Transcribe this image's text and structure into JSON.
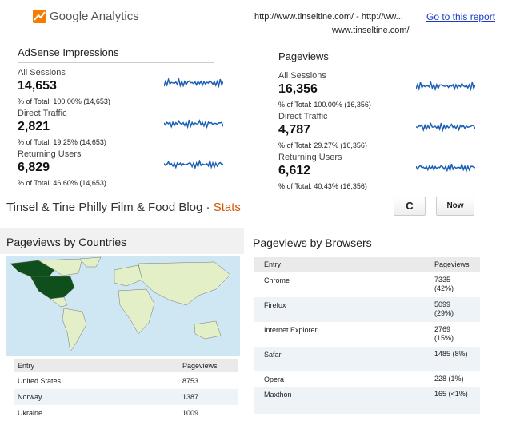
{
  "header": {
    "logo_text": "Google Analytics",
    "url_line_1": "http://www.tinseltine.com/ - http://ww...",
    "url_line_2": "www.tinseltine.com/",
    "link": "Go to this report"
  },
  "panels": [
    {
      "title": "AdSense Impressions",
      "rows": [
        {
          "label": "All Sessions",
          "value": "14,653",
          "percent": "% of Total: 100.00% (14,653)"
        },
        {
          "label": "Direct Traffic",
          "value": "2,821",
          "percent": "% of Total: 19.25% (14,653)"
        },
        {
          "label": "Returning Users",
          "value": "6,829",
          "percent": "% of Total: 46.60% (14,653)"
        }
      ]
    },
    {
      "title": "Pageviews",
      "rows": [
        {
          "label": "All Sessions",
          "value": "16,356",
          "percent": "% of Total: 100.00% (16,356)"
        },
        {
          "label": "Direct Traffic",
          "value": "4,787",
          "percent": "% of Total: 29.27% (16,356)"
        },
        {
          "label": "Returning Users",
          "value": "6,612",
          "percent": "% of Total: 40.43% (16,356)"
        }
      ]
    }
  ],
  "stats_bar": {
    "blog": "Tinsel & Tine Philly Film & Food Blog",
    "separator": "·",
    "section": "Stats",
    "refresh": "C",
    "period": "Now"
  },
  "countries": {
    "title": "Pageviews by Countries",
    "columns": [
      "Entry",
      "Pageviews"
    ],
    "rows": [
      [
        "United States",
        "8753"
      ],
      [
        "Norway",
        "1387"
      ],
      [
        "Ukraine",
        "1009"
      ]
    ]
  },
  "browsers": {
    "title": "Pageviews by Browsers",
    "columns": [
      "Entry",
      "Pageviews"
    ],
    "rows": [
      [
        "Chrome",
        "7335 (42%)"
      ],
      [
        "Firefox",
        "5099 (29%)"
      ],
      [
        "Internet Explorer",
        "2769 (15%)"
      ],
      [
        "Safari",
        "1485 (8%)"
      ],
      [
        "Opera",
        "228 (1%)"
      ],
      [
        "Maxthon",
        "165 (<1%)"
      ]
    ]
  }
}
